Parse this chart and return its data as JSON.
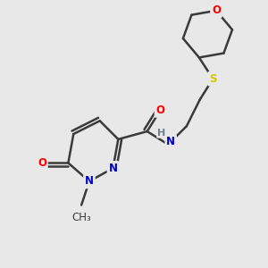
{
  "bg_color": "#e8e8e8",
  "bond_color": "#3a3a3a",
  "bond_width": 1.8,
  "atom_colors": {
    "O": "#ff0000",
    "N": "#0000cd",
    "S": "#cccc00",
    "H": "#708090",
    "C": "#3a3a3a"
  },
  "font_size": 8.5,
  "figsize": [
    3.0,
    3.0
  ],
  "dpi": 100
}
